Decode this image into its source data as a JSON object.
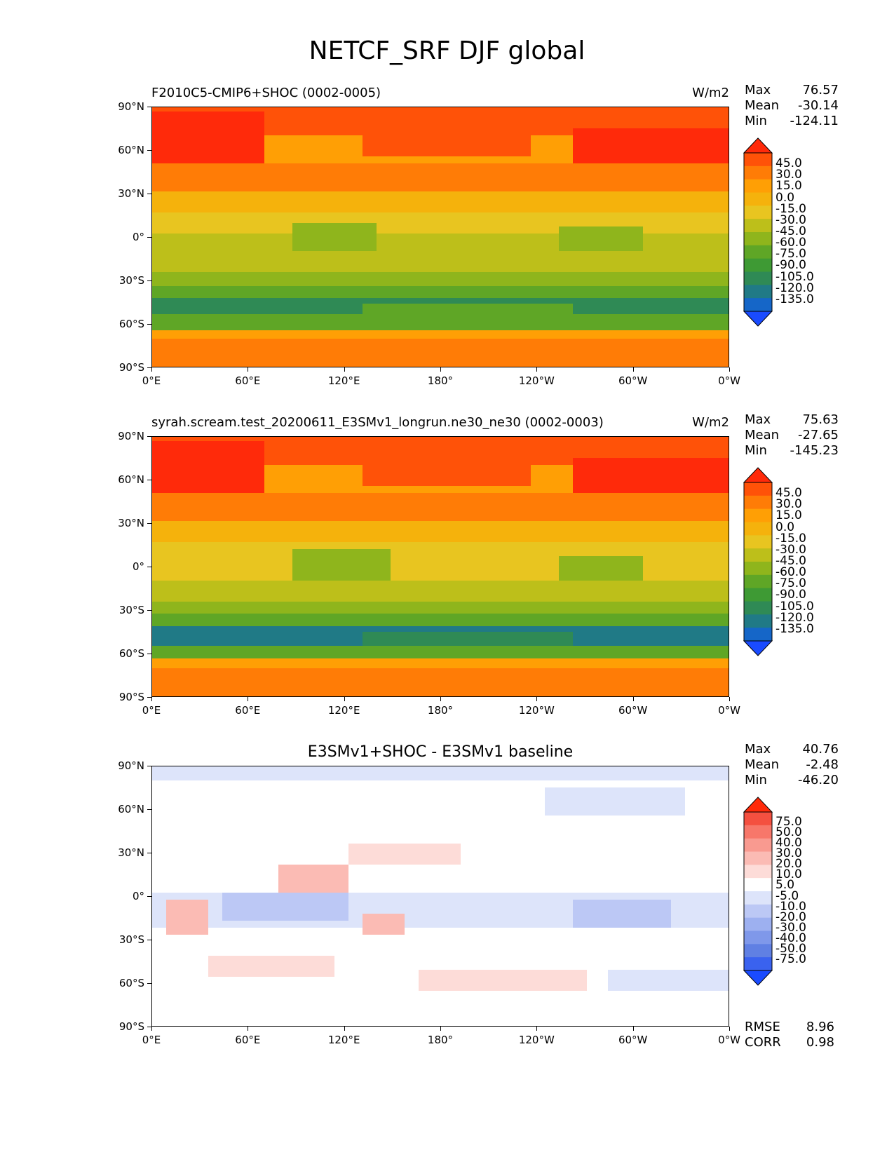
{
  "figure_title": "NETCF_SRF DJF global",
  "axes": {
    "lat_ticks": [
      "90°N",
      "60°N",
      "30°N",
      "0°",
      "30°S",
      "60°S",
      "90°S"
    ],
    "lon_ticks": [
      "0°E",
      "60°E",
      "120°E",
      "180°",
      "120°W",
      "60°W",
      "0°W"
    ]
  },
  "panels": [
    {
      "title": "F2010C5-CMIP6+SHOC (0002-0005)",
      "units": "W/m2",
      "stats": {
        "max_label": "Max",
        "max": "76.57",
        "mean_label": "Mean",
        "mean": "-30.14",
        "min_label": "Min",
        "min": "-124.11"
      },
      "colorbar_labels": [
        "45.0",
        "30.0",
        "15.0",
        "0.0",
        "-15.0",
        "-30.0",
        "-45.0",
        "-60.0",
        "-75.0",
        "-90.0",
        "-105.0",
        "-120.0",
        "-135.0"
      ]
    },
    {
      "title": "syrah.scream.test_20200611_E3SMv1_longrun.ne30_ne30 (0002-0003)",
      "units": "W/m2",
      "stats": {
        "max_label": "Max",
        "max": "75.63",
        "mean_label": "Mean",
        "mean": "-27.65",
        "min_label": "Min",
        "min": "-145.23"
      },
      "colorbar_labels": [
        "45.0",
        "30.0",
        "15.0",
        "0.0",
        "-15.0",
        "-30.0",
        "-45.0",
        "-60.0",
        "-75.0",
        "-90.0",
        "-105.0",
        "-120.0",
        "-135.0"
      ]
    },
    {
      "title": "E3SMv1+SHOC - E3SMv1 baseline",
      "units": "",
      "stats": {
        "max_label": "Max",
        "max": "40.76",
        "mean_label": "Mean",
        "mean": "-2.48",
        "min_label": "Min",
        "min": "-46.20"
      },
      "colorbar_labels": [
        "75.0",
        "50.0",
        "40.0",
        "30.0",
        "20.0",
        "10.0",
        "5.0",
        "-5.0",
        "-10.0",
        "-20.0",
        "-30.0",
        "-40.0",
        "-50.0",
        "-75.0"
      ],
      "footer": {
        "rmse_label": "RMSE",
        "rmse": "8.96",
        "corr_label": "CORR",
        "corr": "0.98"
      }
    }
  ],
  "colors": {
    "field_scale": [
      "#ff2a0a",
      "#ff5208",
      "#ff7c06",
      "#ff9f05",
      "#f5b20c",
      "#e8c520",
      "#bdbf1a",
      "#8fb51c",
      "#5fa626",
      "#3e9a34",
      "#2f8a55",
      "#207a86",
      "#1566c8",
      "#1a4bff"
    ],
    "diff_scale": [
      "#ff2a0a",
      "#f45040",
      "#f7776a",
      "#f99a90",
      "#fbbbb4",
      "#fddcd8",
      "#ffffff",
      "#dde4fa",
      "#bcc8f5",
      "#9db0f0",
      "#7f98ea",
      "#6080e3",
      "#3a62ef",
      "#1a4bff"
    ]
  }
}
